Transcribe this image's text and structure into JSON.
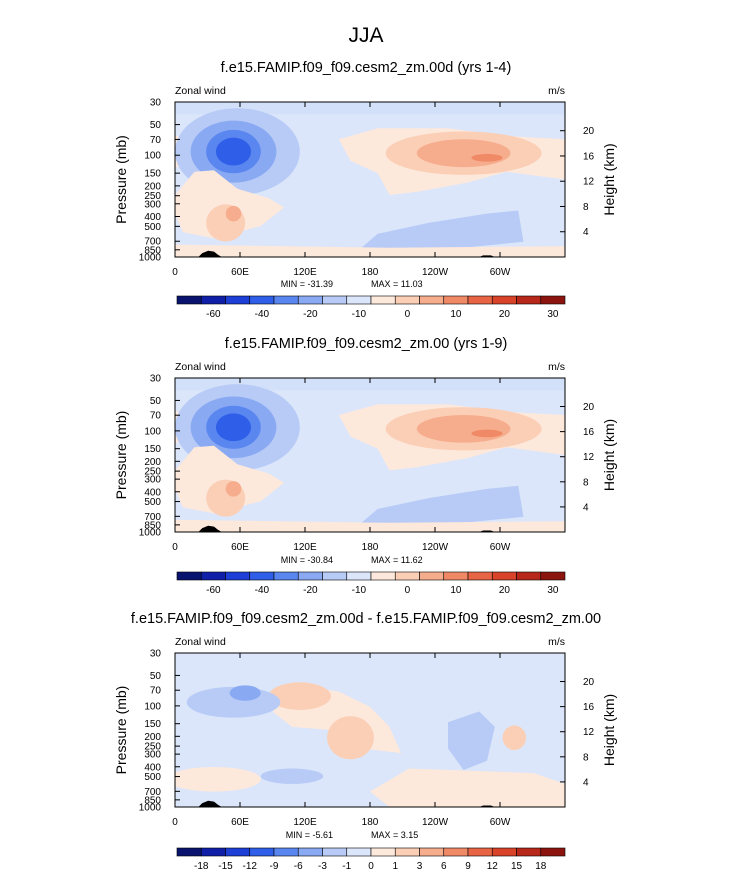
{
  "figure_title": "JJA",
  "colors": {
    "palette": [
      "#08146e",
      "#0f1fa8",
      "#1d3fd6",
      "#2f5fe8",
      "#5a86f0",
      "#8aa9f3",
      "#b7cbf6",
      "#dbe6fb",
      "#fde8dc",
      "#fbcfb6",
      "#f6ad8d",
      "#f08966",
      "#e76545",
      "#d8432a",
      "#b8281a",
      "#8c140e"
    ]
  },
  "chart_data": [
    {
      "type": "contour",
      "title": "f.e15.FAMIP.f09_f09.cesm2_zm.00d (yrs 1-4)",
      "variable_label": "Zonal wind",
      "units": "m/s",
      "ylabel": "Pressure (mb)",
      "y2label": "Height (km)",
      "x_ticks": [
        "0",
        "60E",
        "120E",
        "180",
        "120W",
        "60W"
      ],
      "y_ticks": [
        "30",
        "50",
        "70",
        "100",
        "150",
        "200",
        "250",
        "300",
        "400",
        "500",
        "700",
        "850",
        "1000"
      ],
      "y2_ticks": [
        "20",
        "16",
        "12",
        "8",
        "4"
      ],
      "min_label": "MIN = -31.39",
      "max_label": "MAX =  11.03",
      "min": -31.39,
      "max": 11.03,
      "colorbar_labels": [
        "-60",
        "-40",
        "-20",
        "-10",
        "0",
        "10",
        "20",
        "30"
      ]
    },
    {
      "type": "contour",
      "title": "f.e15.FAMIP.f09_f09.cesm2_zm.00 (yrs 1-9)",
      "variable_label": "Zonal wind",
      "units": "m/s",
      "ylabel": "Pressure (mb)",
      "y2label": "Height (km)",
      "x_ticks": [
        "0",
        "60E",
        "120E",
        "180",
        "120W",
        "60W"
      ],
      "y_ticks": [
        "30",
        "50",
        "70",
        "100",
        "150",
        "200",
        "250",
        "300",
        "400",
        "500",
        "700",
        "850",
        "1000"
      ],
      "y2_ticks": [
        "20",
        "16",
        "12",
        "8",
        "4"
      ],
      "min_label": "MIN = -30.84",
      "max_label": "MAX =  11.62",
      "min": -30.84,
      "max": 11.62,
      "colorbar_labels": [
        "-60",
        "-40",
        "-20",
        "-10",
        "0",
        "10",
        "20",
        "30"
      ]
    },
    {
      "type": "contour",
      "title": "f.e15.FAMIP.f09_f09.cesm2_zm.00d - f.e15.FAMIP.f09_f09.cesm2_zm.00",
      "variable_label": "Zonal wind",
      "units": "m/s",
      "ylabel": "Pressure (mb)",
      "y2label": "Height (km)",
      "x_ticks": [
        "0",
        "60E",
        "120E",
        "180",
        "120W",
        "60W"
      ],
      "y_ticks": [
        "30",
        "50",
        "70",
        "100",
        "150",
        "200",
        "250",
        "300",
        "400",
        "500",
        "700",
        "850",
        "1000"
      ],
      "y2_ticks": [
        "20",
        "16",
        "12",
        "8",
        "4"
      ],
      "min_label": "MIN =  -5.61",
      "max_label": "MAX =   3.15",
      "min": -5.61,
      "max": 3.15,
      "colorbar_labels": [
        "-18",
        "-15",
        "-12",
        "-9",
        "-6",
        "-3",
        "-1",
        "0",
        "1",
        "3",
        "6",
        "9",
        "12",
        "15",
        "18"
      ]
    }
  ]
}
